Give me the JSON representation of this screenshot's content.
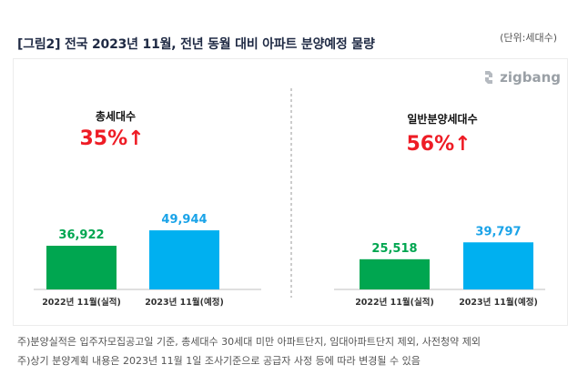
{
  "title": "[그림2] 전국 2023년 11월, 전년 동월 대비 아파트 분양예정 물량",
  "unit": "(단위:세대수)",
  "logo_text": "zigbang",
  "colors": {
    "actual": "#00a650",
    "planned": "#00b0f0",
    "value_label": "#00a650",
    "planned_label": "#1aa3e8",
    "increase": "#ee1c25",
    "title": "#1f2a44"
  },
  "chart_data": [
    {
      "type": "bar",
      "panel_title": "총세대수",
      "change": "35%↑",
      "categories": [
        "2022년 11월(실적)",
        "2023년 11월(예정)"
      ],
      "values": [
        36922,
        49944
      ],
      "value_labels": [
        "36,922",
        "49,944"
      ],
      "ylim": [
        0,
        60000
      ]
    },
    {
      "type": "bar",
      "panel_title": "일반분양세대수",
      "change": "56%↑",
      "categories": [
        "2022년 11월(실적)",
        "2023년 11월(예정)"
      ],
      "values": [
        25518,
        39797
      ],
      "value_labels": [
        "25,518",
        "39,797"
      ],
      "ylim": [
        0,
        60000
      ]
    }
  ],
  "notes": [
    "주)분양실적은 입주자모집공고일 기준, 총세대수 30세대 미만 아파트단지, 임대아파트단지 제외, 사전청약 제외",
    "주)상기 분양계획 내용은 2023년 11월 1일 조사기준으로 공급자 사정 등에 따라 변경될 수 있음"
  ]
}
